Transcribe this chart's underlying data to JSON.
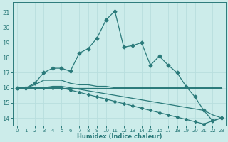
{
  "title": "",
  "xlabel": "Humidex (Indice chaleur)",
  "ylabel": "",
  "xlim": [
    -0.5,
    23.5
  ],
  "ylim": [
    13.5,
    21.7
  ],
  "yticks": [
    14,
    15,
    16,
    17,
    18,
    19,
    20,
    21
  ],
  "xticks": [
    0,
    1,
    2,
    3,
    4,
    5,
    6,
    7,
    8,
    9,
    10,
    11,
    12,
    13,
    14,
    15,
    16,
    17,
    18,
    19,
    20,
    21,
    22,
    23
  ],
  "background_color": "#ccecea",
  "grid_color": "#aadddd",
  "line_color": "#2a7a7a",
  "lines": [
    {
      "x": [
        0,
        1,
        2,
        3,
        4,
        5,
        6,
        7,
        8,
        9,
        10,
        11,
        12,
        13,
        14,
        15,
        16,
        17,
        18,
        19,
        20,
        21,
        22,
        23
      ],
      "y": [
        16.0,
        16.0,
        16.3,
        17.0,
        17.3,
        17.3,
        17.1,
        18.3,
        18.6,
        19.3,
        20.5,
        21.1,
        18.7,
        18.8,
        19.0,
        17.5,
        18.1,
        17.5,
        17.0,
        16.1,
        15.4,
        14.5,
        13.8,
        14.0
      ],
      "marker": "D",
      "marker_size": 2.5,
      "linewidth": 0.9
    },
    {
      "x": [
        0,
        1,
        2,
        3,
        4,
        5,
        6,
        7,
        8,
        9,
        10,
        11,
        12,
        13,
        14,
        15,
        16,
        17,
        18,
        19,
        20,
        21,
        22,
        23
      ],
      "y": [
        16.0,
        16.0,
        16.2,
        16.5,
        16.5,
        16.5,
        16.3,
        16.2,
        16.2,
        16.1,
        16.1,
        16.0,
        16.0,
        16.0,
        16.0,
        16.0,
        16.0,
        16.0,
        16.0,
        16.0,
        16.0,
        16.0,
        16.0,
        16.0
      ],
      "marker": null,
      "marker_size": 0,
      "linewidth": 0.9
    },
    {
      "x": [
        0,
        1,
        2,
        23
      ],
      "y": [
        16.0,
        16.0,
        16.0,
        16.0
      ],
      "marker": null,
      "marker_size": 0,
      "linewidth": 0.9
    },
    {
      "x": [
        0,
        1,
        2,
        3,
        4,
        5,
        6,
        7,
        8,
        9,
        10,
        11,
        12,
        13,
        14,
        15,
        16,
        17,
        18,
        19,
        20,
        21,
        22,
        23
      ],
      "y": [
        16.0,
        16.0,
        16.0,
        16.0,
        16.0,
        16.0,
        15.85,
        15.7,
        15.55,
        15.4,
        15.25,
        15.1,
        14.95,
        14.8,
        14.65,
        14.5,
        14.35,
        14.2,
        14.05,
        13.9,
        13.75,
        13.6,
        13.8,
        14.0
      ],
      "marker": "D",
      "marker_size": 2.0,
      "linewidth": 0.9
    },
    {
      "x": [
        0,
        1,
        2,
        3,
        4,
        5,
        6,
        7,
        8,
        9,
        10,
        11,
        12,
        13,
        14,
        15,
        16,
        17,
        18,
        19,
        20,
        21,
        22,
        23
      ],
      "y": [
        16.0,
        16.0,
        16.0,
        16.0,
        16.1,
        16.1,
        16.0,
        15.9,
        15.8,
        15.7,
        15.6,
        15.5,
        15.4,
        15.3,
        15.2,
        15.1,
        15.0,
        14.9,
        14.8,
        14.7,
        14.6,
        14.5,
        14.2,
        14.0
      ],
      "marker": null,
      "marker_size": 0,
      "linewidth": 0.9
    }
  ]
}
